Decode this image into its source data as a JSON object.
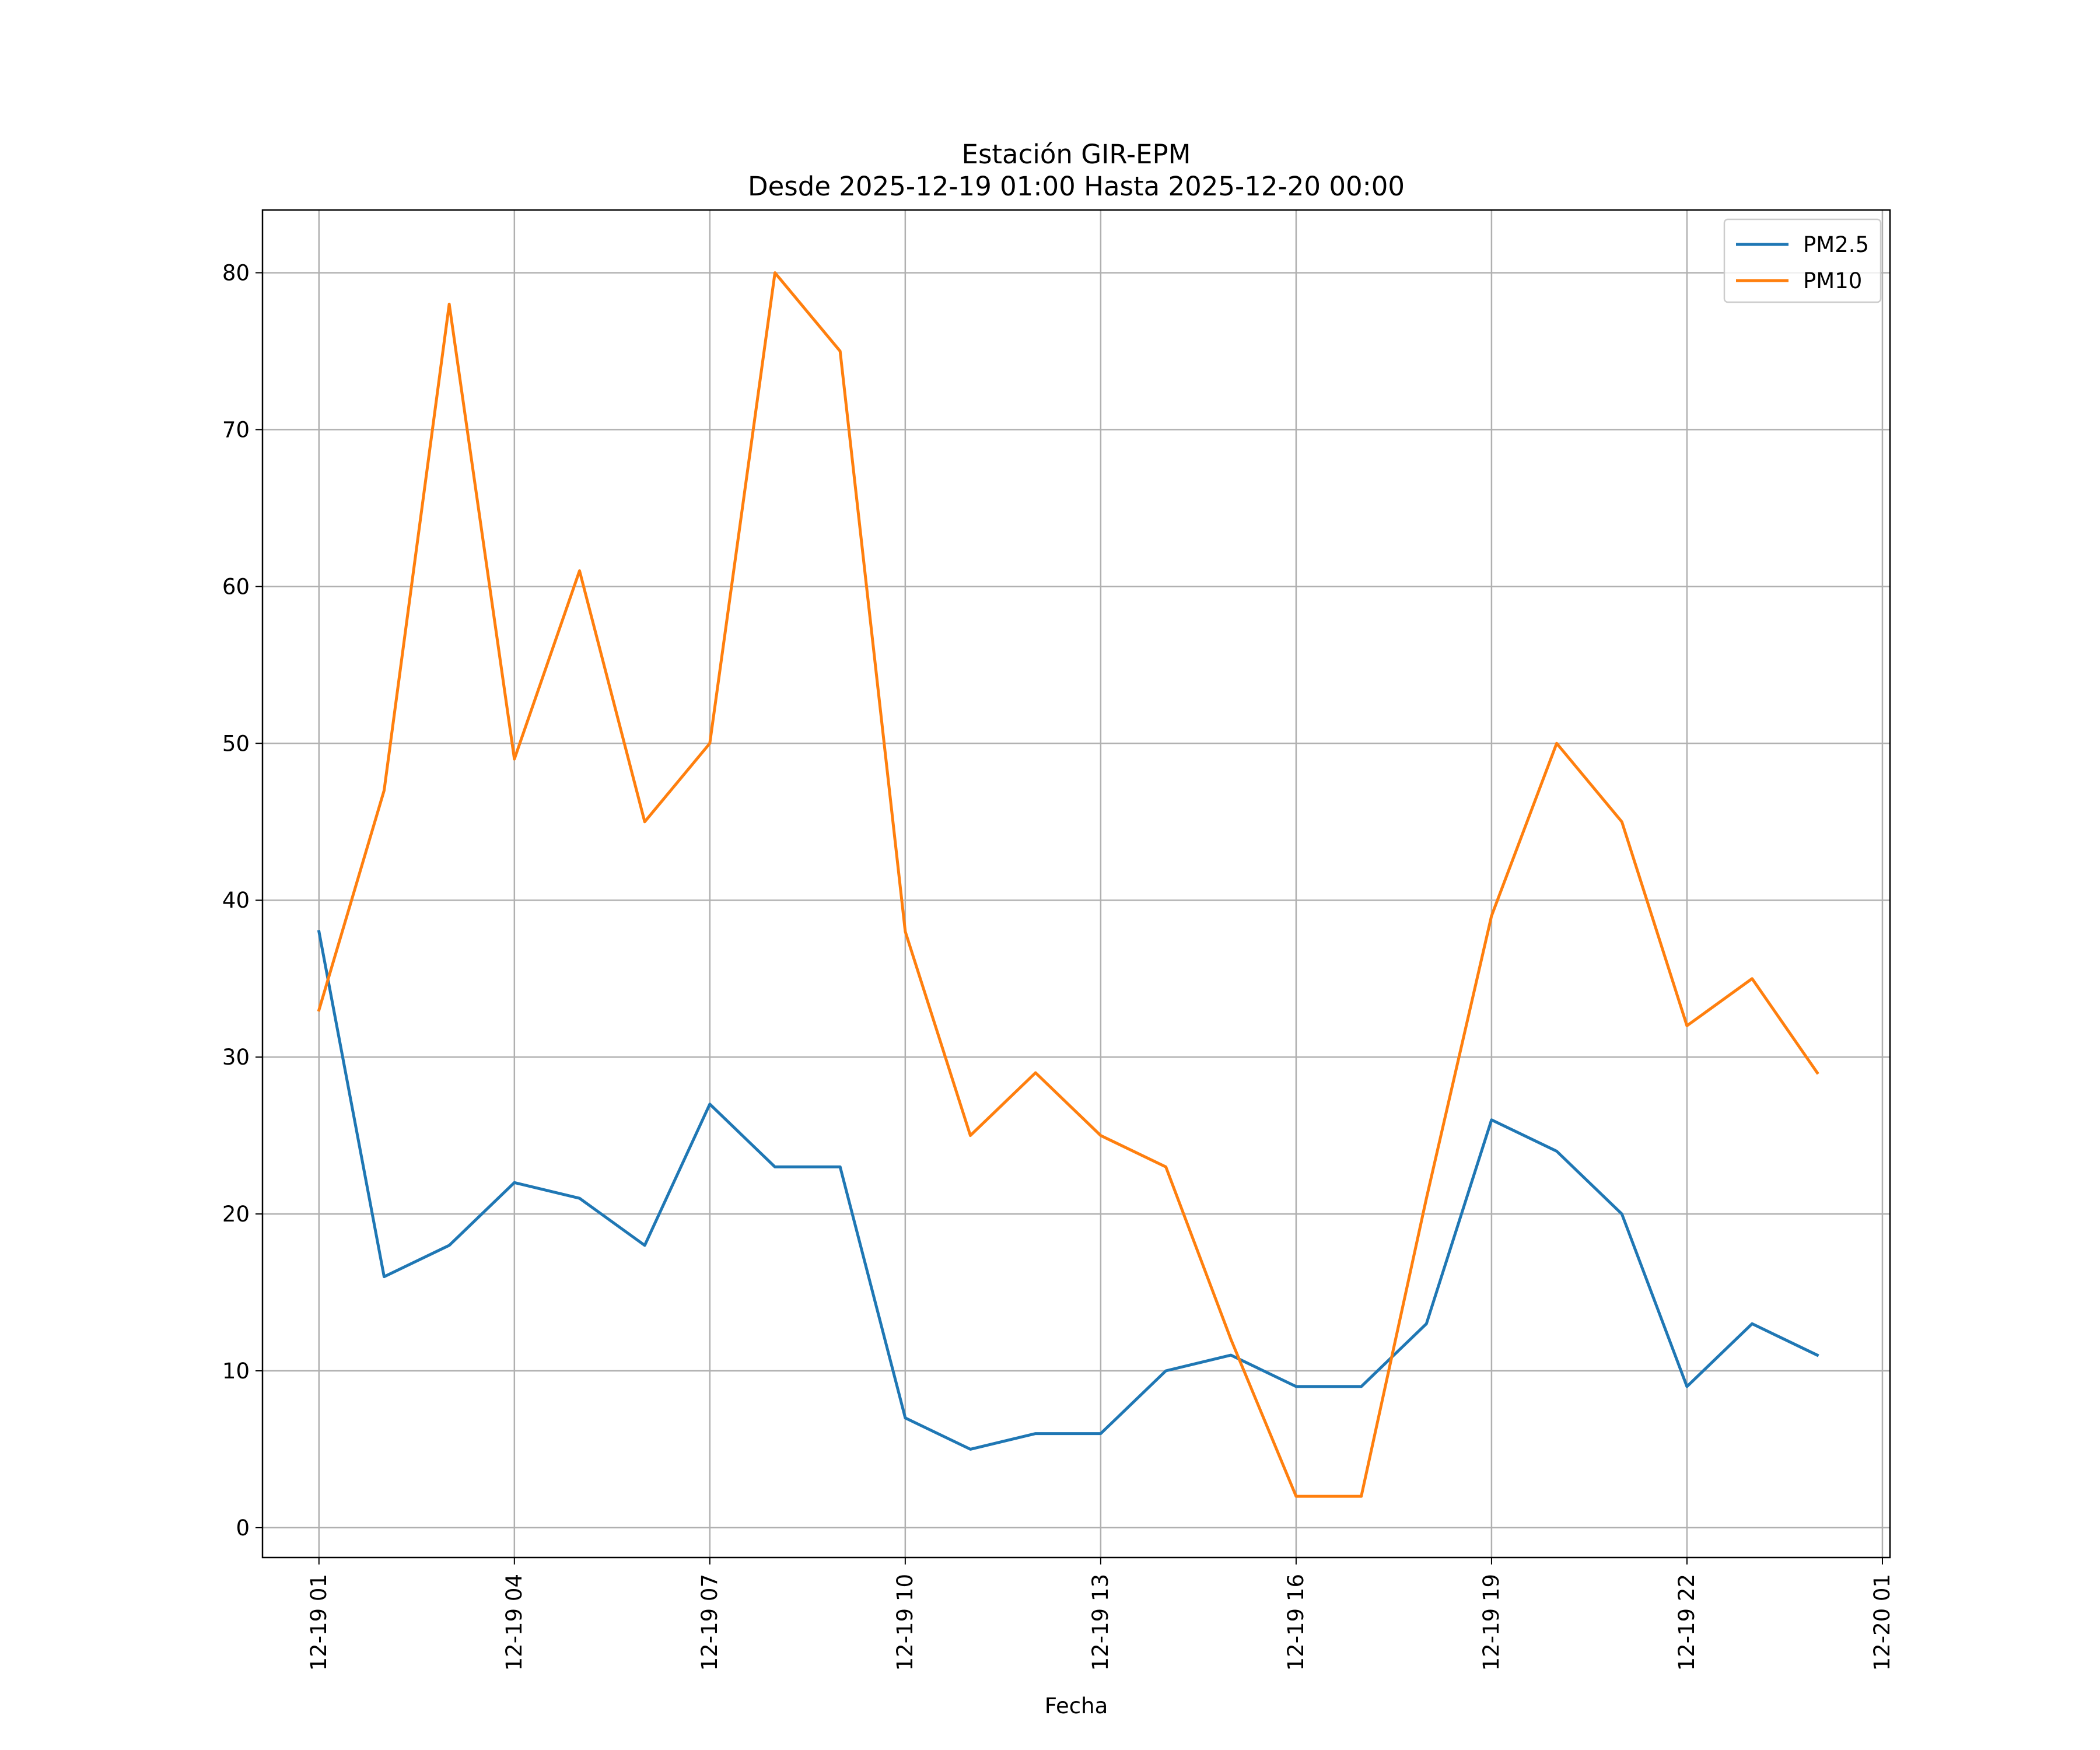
{
  "chart_data": {
    "type": "line",
    "title": "Estación GIR-EPM",
    "subtitle": "Desde 2025-12-19 01:00 Hasta 2025-12-20 00:00",
    "xlabel": "Fecha",
    "ylabel": "",
    "x": [
      "2025-12-19 01:00",
      "2025-12-19 02:00",
      "2025-12-19 03:00",
      "2025-12-19 04:00",
      "2025-12-19 05:00",
      "2025-12-19 06:00",
      "2025-12-19 07:00",
      "2025-12-19 08:00",
      "2025-12-19 09:00",
      "2025-12-19 10:00",
      "2025-12-19 11:00",
      "2025-12-19 12:00",
      "2025-12-19 13:00",
      "2025-12-19 14:00",
      "2025-12-19 15:00",
      "2025-12-19 16:00",
      "2025-12-19 17:00",
      "2025-12-19 18:00",
      "2025-12-19 19:00",
      "2025-12-19 20:00",
      "2025-12-19 21:00",
      "2025-12-19 22:00",
      "2025-12-19 23:00",
      "2025-12-20 00:00"
    ],
    "xlim": [
      "2025-12-19 00:08",
      "2025-12-20 01:07"
    ],
    "ylim": [
      -1.9,
      84
    ],
    "xticks": [
      "2025-12-19 01:00",
      "2025-12-19 04:00",
      "2025-12-19 07:00",
      "2025-12-19 10:00",
      "2025-12-19 13:00",
      "2025-12-19 16:00",
      "2025-12-19 19:00",
      "2025-12-19 22:00",
      "2025-12-20 01:00"
    ],
    "xtick_labels": [
      "12-19 01",
      "12-19 04",
      "12-19 07",
      "12-19 10",
      "12-19 13",
      "12-19 16",
      "12-19 19",
      "12-19 22",
      "12-20 01"
    ],
    "yticks": [
      0,
      10,
      20,
      30,
      40,
      50,
      60,
      70,
      80
    ],
    "ytick_labels": [
      "0",
      "10",
      "20",
      "30",
      "40",
      "50",
      "60",
      "70",
      "80"
    ],
    "grid": true,
    "legend_position": "top-right",
    "series": [
      {
        "name": "PM2.5",
        "color": "#1f77b4",
        "values": [
          38,
          16,
          18,
          22,
          21,
          18,
          27,
          23,
          23,
          7,
          5,
          6,
          6,
          10,
          11,
          9,
          9,
          13,
          26,
          24,
          20,
          9,
          13,
          11
        ]
      },
      {
        "name": "PM10",
        "color": "#ff7f0e",
        "values": [
          33,
          47,
          78,
          49,
          61,
          45,
          50,
          80,
          75,
          38,
          25,
          29,
          25,
          23,
          12,
          2,
          2,
          21,
          39,
          50,
          45,
          32,
          35,
          29
        ]
      }
    ]
  }
}
